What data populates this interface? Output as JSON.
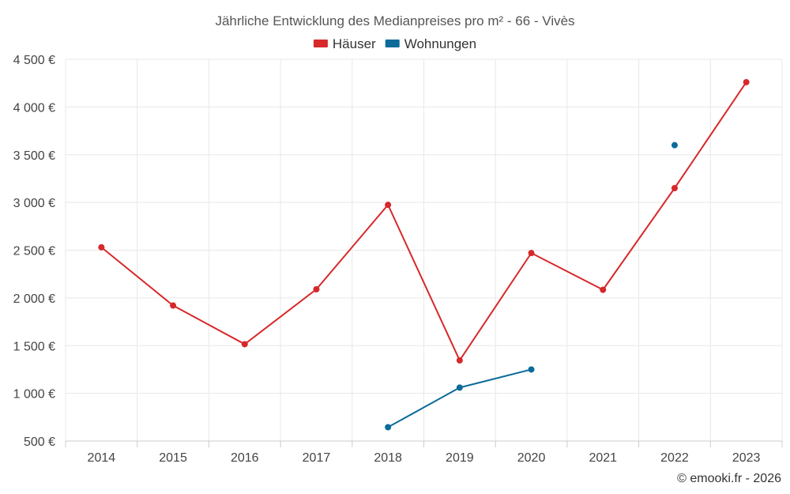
{
  "chart_data": {
    "type": "line",
    "title": "Jährliche Entwicklung des Medianpreises pro m² - 66 - Vivès",
    "categories": [
      "2014",
      "2015",
      "2016",
      "2017",
      "2018",
      "2019",
      "2020",
      "2021",
      "2022",
      "2023"
    ],
    "ylim": [
      500,
      4500
    ],
    "yticks": [
      500,
      1000,
      1500,
      2000,
      2500,
      3000,
      3500,
      4000,
      4500
    ],
    "ytick_labels": [
      "500 €",
      "1 000 €",
      "1 500 €",
      "2 000 €",
      "2 500 €",
      "3 000 €",
      "3 500 €",
      "4 000 €",
      "4 500 €"
    ],
    "series": [
      {
        "name": "Häuser",
        "color": "#d7282a",
        "values": [
          2530,
          1920,
          1515,
          2090,
          2975,
          1345,
          2470,
          2085,
          3150,
          4260
        ]
      },
      {
        "name": "Wohnungen",
        "color": "#0c6b9a",
        "values": [
          null,
          null,
          null,
          null,
          645,
          1060,
          1250,
          null,
          3600,
          null
        ]
      }
    ],
    "grid": true,
    "legend_position": "top-center",
    "credit": "© emooki.fr - 2026"
  }
}
